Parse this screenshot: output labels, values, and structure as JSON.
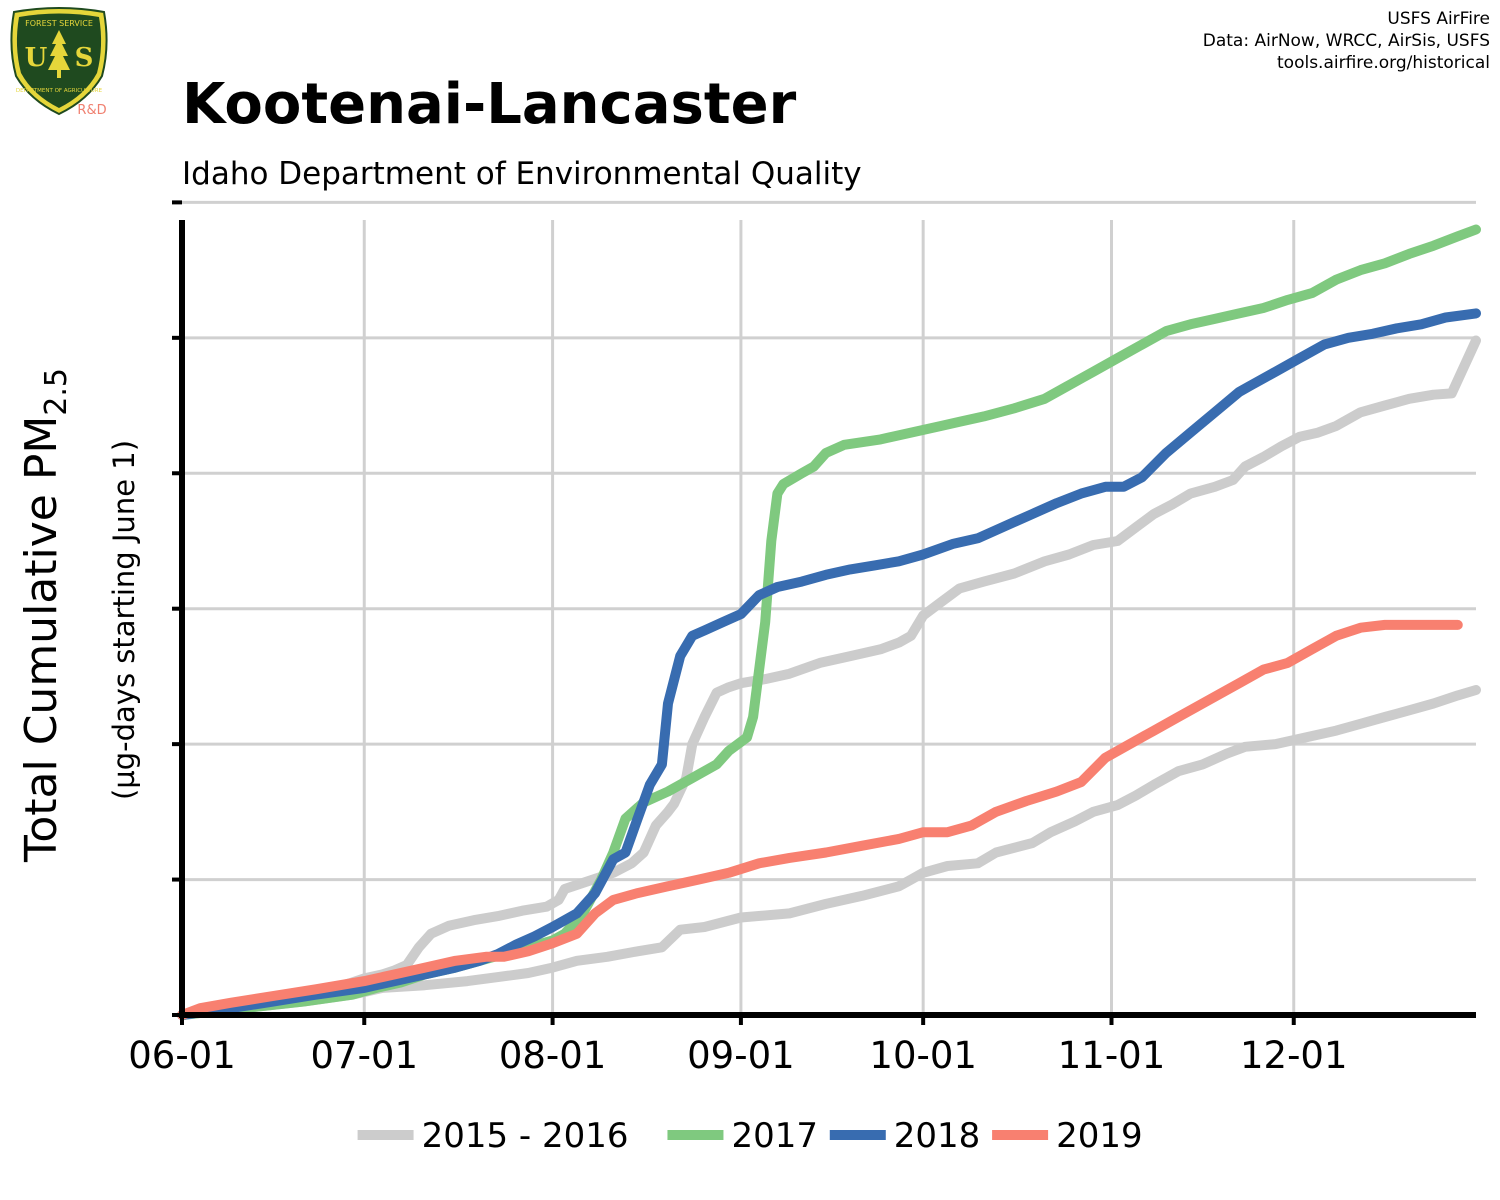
{
  "logo": {
    "top_text": "FOREST SERVICE",
    "bottom_text": "DEPARTMENT OF AGRICULTURE",
    "letters": "USFS",
    "subtitle": "R&D",
    "colors": {
      "shield": "#1f4a1f",
      "rim": "#e5d63a",
      "tree": "#e5d63a",
      "rd": "#f08070"
    }
  },
  "credits": {
    "line1": "USFS AirFire",
    "line2": "Data: AirNow, WRCC, AirSis, USFS",
    "line3": "tools.airfire.org/historical"
  },
  "chart_data": {
    "type": "line",
    "title": "Kootenai-Lancaster",
    "subtitle": "Idaho Department of Environmental Quality",
    "ylabel_main": "Total Cumulative PM",
    "ylabel_sub": "2.5",
    "ylabel_units": "(µg-days starting June 1)",
    "x_tick_labels": [
      "06-01",
      "07-01",
      "08-01",
      "09-01",
      "10-01",
      "11-01",
      "12-01"
    ],
    "x_ticks_day": [
      0,
      30,
      61,
      92,
      122,
      153,
      183
    ],
    "xlim_day": [
      0,
      213
    ],
    "y_ticks": [
      0,
      1,
      2,
      3,
      4,
      5,
      6
    ],
    "y_tick_labels_shown": false,
    "ylim": [
      0,
      5.87
    ],
    "grid": true,
    "legend_position": "bottom",
    "series": [
      {
        "name": "2015 - 2016",
        "color": "#cccccc",
        "width": 10,
        "points": [
          [
            0,
            0
          ],
          [
            5,
            0.03
          ],
          [
            10,
            0.07
          ],
          [
            15,
            0.1
          ],
          [
            20,
            0.15
          ],
          [
            25,
            0.2
          ],
          [
            28,
            0.24
          ],
          [
            30,
            0.27
          ],
          [
            33,
            0.3
          ],
          [
            35,
            0.33
          ],
          [
            37,
            0.37
          ],
          [
            39,
            0.5
          ],
          [
            41,
            0.6
          ],
          [
            44,
            0.66
          ],
          [
            48,
            0.7
          ],
          [
            52,
            0.73
          ],
          [
            56,
            0.77
          ],
          [
            60,
            0.8
          ],
          [
            62,
            0.85
          ],
          [
            63,
            0.93
          ],
          [
            67,
            0.99
          ],
          [
            71,
            1.05
          ],
          [
            74,
            1.12
          ],
          [
            76,
            1.2
          ],
          [
            78,
            1.4
          ],
          [
            80,
            1.5
          ],
          [
            81,
            1.56
          ],
          [
            83,
            1.75
          ],
          [
            84,
            2.0
          ],
          [
            86,
            2.2
          ],
          [
            88,
            2.38
          ],
          [
            90,
            2.42
          ],
          [
            92,
            2.45
          ],
          [
            96,
            2.48
          ],
          [
            100,
            2.52
          ],
          [
            105,
            2.6
          ],
          [
            110,
            2.65
          ],
          [
            115,
            2.7
          ],
          [
            118,
            2.75
          ],
          [
            120,
            2.8
          ],
          [
            122,
            2.95
          ],
          [
            125,
            3.05
          ],
          [
            128,
            3.15
          ],
          [
            132,
            3.2
          ],
          [
            137,
            3.26
          ],
          [
            142,
            3.35
          ],
          [
            146,
            3.4
          ],
          [
            150,
            3.47
          ],
          [
            154,
            3.5
          ],
          [
            157,
            3.6
          ],
          [
            160,
            3.7
          ],
          [
            163,
            3.77
          ],
          [
            166,
            3.85
          ],
          [
            170,
            3.9
          ],
          [
            173,
            3.95
          ],
          [
            175,
            4.05
          ],
          [
            178,
            4.12
          ],
          [
            181,
            4.2
          ],
          [
            184,
            4.27
          ],
          [
            187,
            4.3
          ],
          [
            190,
            4.35
          ],
          [
            194,
            4.45
          ],
          [
            198,
            4.5
          ],
          [
            202,
            4.55
          ],
          [
            206,
            4.58
          ],
          [
            209,
            4.59
          ],
          [
            213,
            4.98
          ]
        ]
      },
      {
        "name": "2015 - 2016",
        "color": "#cccccc",
        "width": 10,
        "points": [
          [
            0,
            0
          ],
          [
            10,
            0.05
          ],
          [
            20,
            0.1
          ],
          [
            28,
            0.15
          ],
          [
            33,
            0.2
          ],
          [
            40,
            0.22
          ],
          [
            47,
            0.25
          ],
          [
            52,
            0.28
          ],
          [
            57,
            0.31
          ],
          [
            61,
            0.35
          ],
          [
            65,
            0.4
          ],
          [
            70,
            0.43
          ],
          [
            75,
            0.47
          ],
          [
            79,
            0.5
          ],
          [
            82,
            0.63
          ],
          [
            86,
            0.65
          ],
          [
            92,
            0.72
          ],
          [
            100,
            0.75
          ],
          [
            106,
            0.82
          ],
          [
            112,
            0.88
          ],
          [
            118,
            0.95
          ],
          [
            120,
            1.0
          ],
          [
            122,
            1.05
          ],
          [
            126,
            1.1
          ],
          [
            131,
            1.12
          ],
          [
            134,
            1.2
          ],
          [
            140,
            1.27
          ],
          [
            143,
            1.35
          ],
          [
            147,
            1.43
          ],
          [
            150,
            1.5
          ],
          [
            154,
            1.55
          ],
          [
            157,
            1.62
          ],
          [
            160,
            1.7
          ],
          [
            164,
            1.8
          ],
          [
            168,
            1.85
          ],
          [
            172,
            1.93
          ],
          [
            175,
            1.98
          ],
          [
            180,
            2.0
          ],
          [
            185,
            2.05
          ],
          [
            190,
            2.1
          ],
          [
            194,
            2.15
          ],
          [
            198,
            2.2
          ],
          [
            202,
            2.25
          ],
          [
            206,
            2.3
          ],
          [
            210,
            2.36
          ],
          [
            213,
            2.4
          ]
        ]
      },
      {
        "name": "2017",
        "color": "#7fc97f",
        "width": 10,
        "points": [
          [
            0,
            0
          ],
          [
            10,
            0.05
          ],
          [
            20,
            0.1
          ],
          [
            28,
            0.15
          ],
          [
            32,
            0.2
          ],
          [
            36,
            0.24
          ],
          [
            40,
            0.3
          ],
          [
            45,
            0.35
          ],
          [
            49,
            0.4
          ],
          [
            53,
            0.45
          ],
          [
            57,
            0.5
          ],
          [
            61,
            0.55
          ],
          [
            63,
            0.6
          ],
          [
            66,
            0.75
          ],
          [
            69,
            1.0
          ],
          [
            71,
            1.2
          ],
          [
            73,
            1.45
          ],
          [
            76,
            1.57
          ],
          [
            80,
            1.65
          ],
          [
            84,
            1.75
          ],
          [
            88,
            1.85
          ],
          [
            90,
            1.95
          ],
          [
            93,
            2.05
          ],
          [
            94,
            2.2
          ],
          [
            96,
            2.9
          ],
          [
            97,
            3.5
          ],
          [
            98,
            3.85
          ],
          [
            99,
            3.92
          ],
          [
            102,
            4.0
          ],
          [
            104,
            4.05
          ],
          [
            106,
            4.15
          ],
          [
            109,
            4.21
          ],
          [
            115,
            4.25
          ],
          [
            120,
            4.3
          ],
          [
            125,
            4.35
          ],
          [
            128,
            4.38
          ],
          [
            132,
            4.42
          ],
          [
            137,
            4.48
          ],
          [
            142,
            4.55
          ],
          [
            146,
            4.65
          ],
          [
            150,
            4.75
          ],
          [
            154,
            4.85
          ],
          [
            158,
            4.95
          ],
          [
            162,
            5.05
          ],
          [
            166,
            5.1
          ],
          [
            170,
            5.14
          ],
          [
            174,
            5.18
          ],
          [
            178,
            5.22
          ],
          [
            182,
            5.28
          ],
          [
            186,
            5.33
          ],
          [
            190,
            5.43
          ],
          [
            194,
            5.5
          ],
          [
            198,
            5.55
          ],
          [
            202,
            5.62
          ],
          [
            206,
            5.68
          ],
          [
            210,
            5.75
          ],
          [
            213,
            5.8
          ]
        ]
      },
      {
        "name": "2018",
        "color": "#386cb0",
        "width": 10,
        "points": [
          [
            0,
            0
          ],
          [
            8,
            0.05
          ],
          [
            15,
            0.1
          ],
          [
            22,
            0.15
          ],
          [
            30,
            0.2
          ],
          [
            35,
            0.25
          ],
          [
            40,
            0.3
          ],
          [
            45,
            0.35
          ],
          [
            49,
            0.4
          ],
          [
            52,
            0.45
          ],
          [
            55,
            0.52
          ],
          [
            58,
            0.58
          ],
          [
            61,
            0.65
          ],
          [
            65,
            0.75
          ],
          [
            68,
            0.9
          ],
          [
            71,
            1.15
          ],
          [
            73,
            1.2
          ],
          [
            75,
            1.45
          ],
          [
            77,
            1.7
          ],
          [
            79,
            1.85
          ],
          [
            80,
            2.3
          ],
          [
            82,
            2.65
          ],
          [
            84,
            2.8
          ],
          [
            86,
            2.84
          ],
          [
            89,
            2.9
          ],
          [
            92,
            2.96
          ],
          [
            95,
            3.1
          ],
          [
            98,
            3.16
          ],
          [
            102,
            3.2
          ],
          [
            106,
            3.25
          ],
          [
            110,
            3.29
          ],
          [
            114,
            3.32
          ],
          [
            118,
            3.35
          ],
          [
            122,
            3.4
          ],
          [
            127,
            3.48
          ],
          [
            131,
            3.52
          ],
          [
            135,
            3.6
          ],
          [
            140,
            3.7
          ],
          [
            144,
            3.78
          ],
          [
            148,
            3.85
          ],
          [
            152,
            3.9
          ],
          [
            155,
            3.9
          ],
          [
            158,
            3.97
          ],
          [
            162,
            4.15
          ],
          [
            166,
            4.3
          ],
          [
            170,
            4.45
          ],
          [
            174,
            4.6
          ],
          [
            176,
            4.65
          ],
          [
            180,
            4.75
          ],
          [
            184,
            4.85
          ],
          [
            188,
            4.95
          ],
          [
            192,
            5.0
          ],
          [
            196,
            5.03
          ],
          [
            200,
            5.07
          ],
          [
            204,
            5.1
          ],
          [
            208,
            5.15
          ],
          [
            213,
            5.18
          ]
        ]
      },
      {
        "name": "2019",
        "color": "#f88070",
        "width": 10,
        "points": [
          [
            0,
            0
          ],
          [
            3,
            0.05
          ],
          [
            8,
            0.09
          ],
          [
            15,
            0.14
          ],
          [
            22,
            0.19
          ],
          [
            30,
            0.25
          ],
          [
            35,
            0.3
          ],
          [
            40,
            0.35
          ],
          [
            45,
            0.4
          ],
          [
            50,
            0.43
          ],
          [
            53,
            0.43
          ],
          [
            57,
            0.47
          ],
          [
            61,
            0.53
          ],
          [
            65,
            0.6
          ],
          [
            68,
            0.75
          ],
          [
            71,
            0.85
          ],
          [
            75,
            0.9
          ],
          [
            80,
            0.95
          ],
          [
            85,
            1.0
          ],
          [
            90,
            1.05
          ],
          [
            95,
            1.12
          ],
          [
            100,
            1.16
          ],
          [
            106,
            1.2
          ],
          [
            112,
            1.25
          ],
          [
            118,
            1.3
          ],
          [
            122,
            1.35
          ],
          [
            126,
            1.35
          ],
          [
            130,
            1.4
          ],
          [
            134,
            1.5
          ],
          [
            139,
            1.58
          ],
          [
            144,
            1.65
          ],
          [
            148,
            1.72
          ],
          [
            152,
            1.9
          ],
          [
            156,
            2.0
          ],
          [
            160,
            2.1
          ],
          [
            164,
            2.2
          ],
          [
            168,
            2.3
          ],
          [
            172,
            2.4
          ],
          [
            174,
            2.45
          ],
          [
            178,
            2.55
          ],
          [
            182,
            2.6
          ],
          [
            186,
            2.7
          ],
          [
            190,
            2.8
          ],
          [
            194,
            2.86
          ],
          [
            198,
            2.88
          ],
          [
            202,
            2.88
          ],
          [
            206,
            2.88
          ],
          [
            210,
            2.88
          ]
        ]
      }
    ]
  },
  "legend": [
    {
      "label": "2015 - 2016",
      "color": "#cccccc"
    },
    {
      "label": "2017",
      "color": "#7fc97f"
    },
    {
      "label": "2018",
      "color": "#386cb0"
    },
    {
      "label": "2019",
      "color": "#f88070"
    }
  ]
}
